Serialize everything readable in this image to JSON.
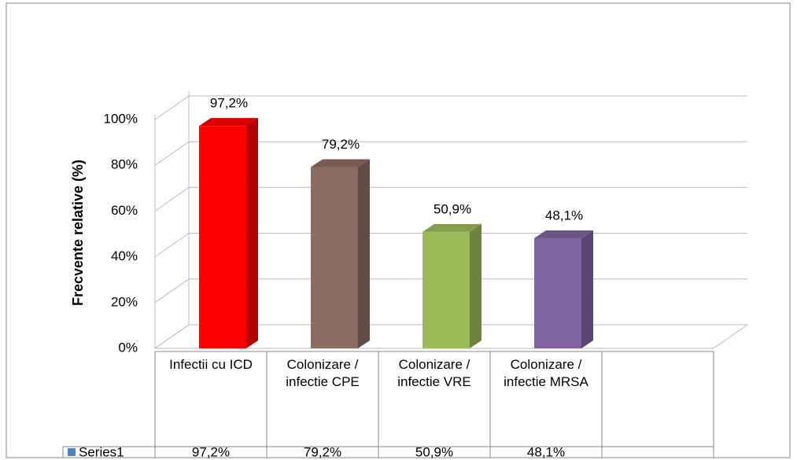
{
  "chart_data": {
    "type": "bar3d",
    "y_axis_label": "Frecvente relative (%)",
    "categories": [
      "Infectii cu ICD",
      "Colonizare / infectie CPE",
      "Colonizare / infectie VRE",
      "Colonizare / infectie MRSA"
    ],
    "series": [
      {
        "name": "Series1",
        "color": "#4f81bd",
        "values": [
          97.2,
          79.2,
          50.9,
          48.1
        ],
        "value_labels": [
          "97,2%",
          "79,2%",
          "50,9%",
          "48,1%"
        ],
        "colors": [
          "#ff0000",
          "#8b6d63",
          "#9bbb59",
          "#8064a2"
        ]
      }
    ],
    "ylim": [
      0,
      100
    ],
    "yticks": [
      {
        "value": 0,
        "label": "0%"
      },
      {
        "value": 20,
        "label": "20%"
      },
      {
        "value": 40,
        "label": "40%"
      },
      {
        "value": 60,
        "label": "60%"
      },
      {
        "value": 80,
        "label": "80%"
      },
      {
        "value": 100,
        "label": "100%"
      }
    ],
    "grid": true,
    "data_table": true
  }
}
